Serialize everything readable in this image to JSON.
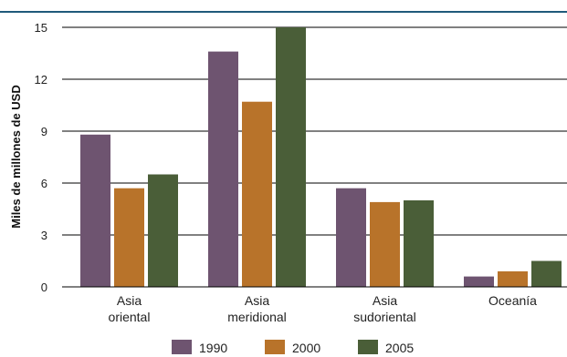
{
  "chart_data": {
    "type": "bar",
    "title": "",
    "xlabel": "",
    "ylabel": "Miles de millones de USD",
    "ylim": [
      0,
      15
    ],
    "yticks": [
      0,
      3,
      6,
      9,
      12,
      15
    ],
    "grid": true,
    "legend_position": "bottom",
    "categories": [
      [
        "Asia",
        "oriental"
      ],
      [
        "Asia",
        "meridional"
      ],
      [
        "Asia",
        "sudoriental"
      ],
      [
        "Oceanía"
      ]
    ],
    "series": [
      {
        "name": "1990",
        "color": "#6e5470",
        "values": [
          8.8,
          13.6,
          5.7,
          0.6
        ]
      },
      {
        "name": "2000",
        "color": "#b8732a",
        "values": [
          5.7,
          10.7,
          4.9,
          0.9
        ]
      },
      {
        "name": "2005",
        "color": "#4a5e38",
        "values": [
          6.5,
          15.0,
          5.0,
          1.5
        ]
      }
    ],
    "top_rule_color": "#1f5a7a"
  }
}
